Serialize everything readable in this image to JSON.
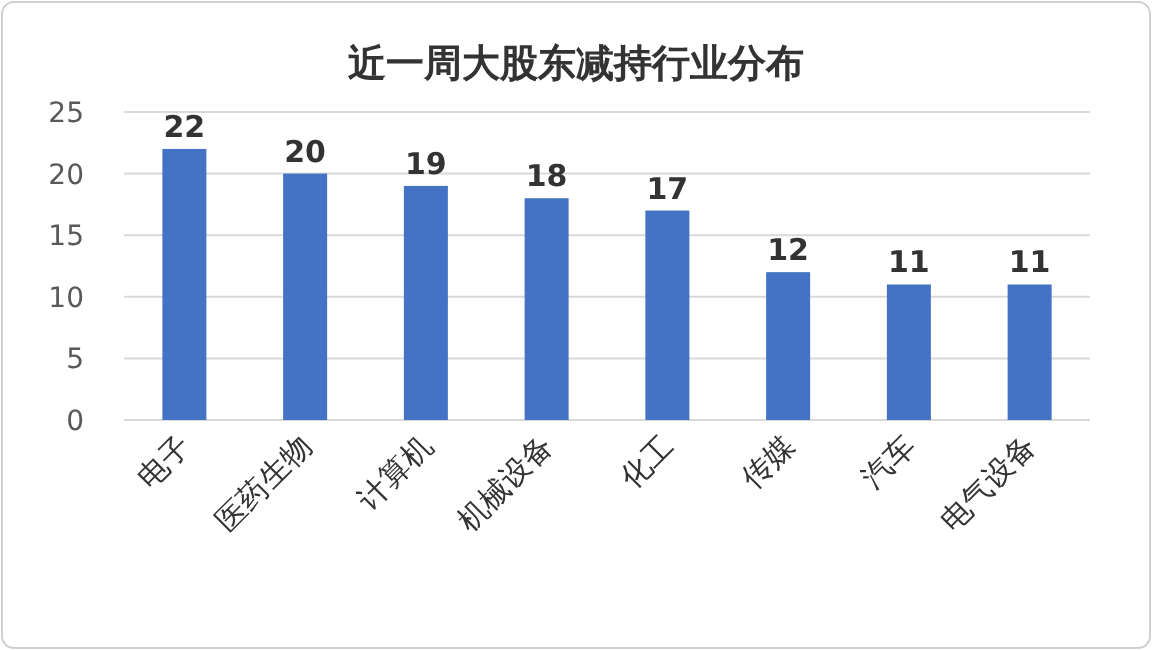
{
  "chart_data": {
    "type": "bar",
    "title": "近一周大股东减持行业分布",
    "categories": [
      "电子",
      "医药生物",
      "计算机",
      "机械设备",
      "化工",
      "传媒",
      "汽车",
      "电气设备"
    ],
    "values": [
      22,
      20,
      19,
      18,
      17,
      12,
      11,
      11
    ],
    "color": "#4472c4",
    "ylim": [
      0,
      25
    ],
    "yticks": [
      0,
      5,
      10,
      15,
      20,
      25
    ],
    "grid": "y",
    "data_labels": true
  }
}
